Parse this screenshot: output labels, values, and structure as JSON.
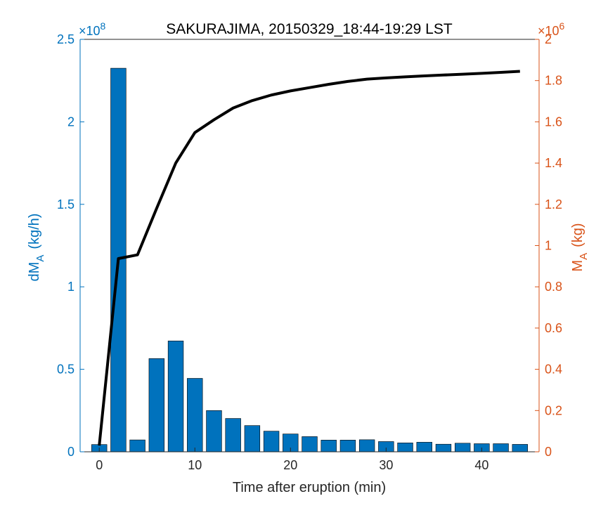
{
  "chart_data": {
    "type": "bar",
    "title": "SAKURAJIMA, 20150329_18:44-19:29 LST",
    "xlabel": "Time after eruption (min)",
    "xlim": [
      -2,
      46
    ],
    "xticks": [
      0,
      10,
      20,
      30,
      40
    ],
    "grid": false,
    "bars": {
      "name": "dM_A (kg/h)",
      "axis": "left",
      "color": "#0072BD",
      "x": [
        0,
        2,
        4,
        6,
        8,
        10,
        12,
        14,
        16,
        18,
        20,
        22,
        24,
        26,
        28,
        30,
        32,
        34,
        36,
        38,
        40,
        42,
        44
      ],
      "values": [
        4400000,
        232500000,
        7200000,
        56500000,
        67200000,
        44500000,
        25000000,
        20200000,
        15900000,
        12500000,
        10800000,
        9200000,
        7100000,
        7100000,
        7300000,
        6200000,
        5400000,
        5800000,
        4600000,
        5200000,
        4900000,
        4900000,
        4500000
      ]
    },
    "line": {
      "name": "M_A (kg)",
      "axis": "right",
      "color": "#000000",
      "x": [
        0,
        2,
        4,
        6,
        8,
        10,
        12,
        14,
        16,
        18,
        20,
        22,
        24,
        26,
        28,
        30,
        32,
        34,
        36,
        38,
        40,
        42,
        44
      ],
      "values": [
        30000,
        937000,
        955000,
        1180000,
        1400000,
        1548000,
        1610000,
        1667000,
        1703000,
        1730000,
        1750000,
        1766000,
        1782000,
        1796000,
        1807000,
        1813000,
        1818000,
        1823000,
        1827000,
        1831000,
        1835000,
        1840000,
        1845000
      ]
    },
    "left_axis": {
      "label_main": "dM",
      "label_sub": "A",
      "label_units": "(kg/h)",
      "ylim": [
        0,
        250000000
      ],
      "multiplier_base": "×10",
      "multiplier_exp": "8",
      "tick_values": [
        0,
        50000000,
        100000000,
        150000000,
        200000000,
        250000000
      ],
      "tick_labels": [
        "0",
        "0.5",
        "1",
        "1.5",
        "2",
        "2.5"
      ],
      "color": "#0072BD"
    },
    "right_axis": {
      "label_main": "M",
      "label_sub": "A",
      "label_units": "(kg)",
      "ylim": [
        0,
        2000000
      ],
      "multiplier_base": "×10",
      "multiplier_exp": "6",
      "tick_values": [
        0,
        200000,
        400000,
        600000,
        800000,
        1000000,
        1200000,
        1400000,
        1600000,
        1800000,
        2000000
      ],
      "tick_labels": [
        "0",
        "0.2",
        "0.4",
        "0.6",
        "0.8",
        "1",
        "1.2",
        "1.4",
        "1.6",
        "1.8",
        "2"
      ],
      "color": "#D95319"
    }
  }
}
